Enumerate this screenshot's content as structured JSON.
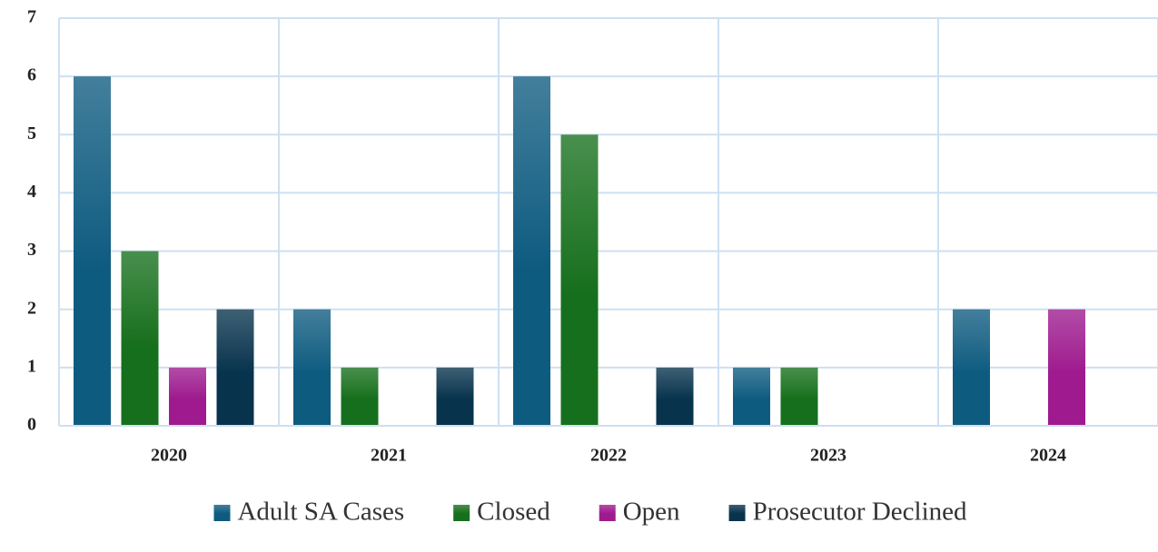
{
  "chart_data": {
    "type": "bar",
    "categories": [
      "2020",
      "2021",
      "2022",
      "2023",
      "2024"
    ],
    "series": [
      {
        "name": "Adult SA Cases",
        "color": "#0e5b80",
        "values": [
          6,
          2,
          6,
          1,
          2
        ]
      },
      {
        "name": "Closed",
        "color": "#166f1c",
        "values": [
          3,
          1,
          5,
          1,
          0
        ]
      },
      {
        "name": "Open",
        "color": "#9e1a8e",
        "values": [
          1,
          0,
          0,
          0,
          2
        ]
      },
      {
        "name": "Prosecutor Declined",
        "color": "#07334d",
        "values": [
          2,
          1,
          1,
          0,
          0
        ]
      }
    ],
    "ylim": [
      0,
      7
    ],
    "yticks": [
      0,
      1,
      2,
      3,
      4,
      5,
      6,
      7
    ],
    "grid": true,
    "legend": "bottom"
  }
}
